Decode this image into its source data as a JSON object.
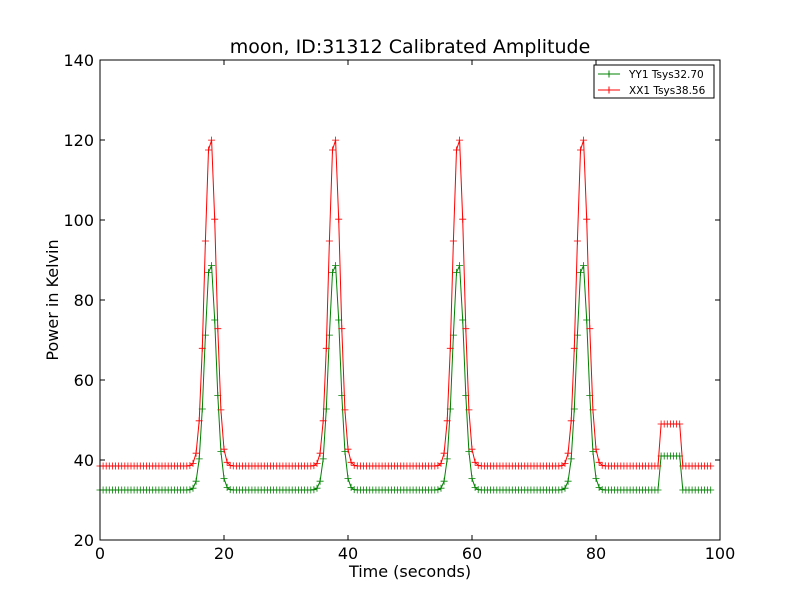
{
  "chart_data": {
    "type": "line",
    "title": "moon, ID:31312 Calibrated Amplitude",
    "xlabel": "Time (seconds)",
    "ylabel": "Power in Kelvin",
    "xlim": [
      0,
      100
    ],
    "ylim": [
      20,
      140
    ],
    "x_ticks": [
      "0",
      "20",
      "40",
      "60",
      "80",
      "100"
    ],
    "y_ticks": [
      "20",
      "40",
      "60",
      "80",
      "100",
      "120",
      "140"
    ],
    "grid": false,
    "legend_position": "top-right",
    "marker": "+",
    "sample_interval": 0.5,
    "x_range": [
      0,
      98.5
    ],
    "series": [
      {
        "name": "YY1 Tsys32.70",
        "color": "#008000",
        "baseline": 32.5,
        "peaks": [
          {
            "x": 17.8,
            "peak": 90
          },
          {
            "x": 37.8,
            "peak": 90
          },
          {
            "x": 57.8,
            "peak": 90
          },
          {
            "x": 77.8,
            "peak": 90
          }
        ],
        "step": {
          "start": 90.5,
          "end": 93.8,
          "value": 41
        }
      },
      {
        "name": "XX1 Tsys38.56",
        "color": "#ff0000",
        "baseline": 38.5,
        "peaks": [
          {
            "x": 17.8,
            "peak": 122
          },
          {
            "x": 37.8,
            "peak": 122
          },
          {
            "x": 57.8,
            "peak": 122
          },
          {
            "x": 77.8,
            "peak": 122
          }
        ],
        "step": {
          "start": 90.5,
          "end": 93.8,
          "value": 49
        }
      }
    ]
  }
}
